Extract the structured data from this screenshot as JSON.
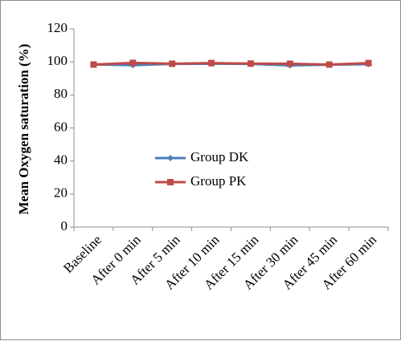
{
  "chart_data": {
    "type": "line",
    "title": "",
    "xlabel": "",
    "ylabel": "Mean Oxygen saturation  (%)",
    "ylim": [
      0,
      120
    ],
    "yticks": [
      0,
      20,
      40,
      60,
      80,
      100,
      120
    ],
    "grid": false,
    "legend_position": "center-left",
    "categories": [
      "Baseline",
      "After 0 min",
      "After 5 min",
      "After 10 min",
      "After 15 min",
      "After 30 min",
      "After 45 min",
      "After 60 min"
    ],
    "series": [
      {
        "name": "Group DK",
        "color": "#4a7ebb",
        "marker": "diamond",
        "values": [
          98.5,
          98.0,
          98.8,
          98.9,
          98.8,
          97.9,
          98.3,
          98.6
        ]
      },
      {
        "name": "Group PK",
        "color": "#be4b48",
        "marker": "square",
        "values": [
          98.4,
          99.4,
          98.9,
          99.3,
          99.0,
          98.9,
          98.4,
          99.3
        ]
      }
    ]
  }
}
